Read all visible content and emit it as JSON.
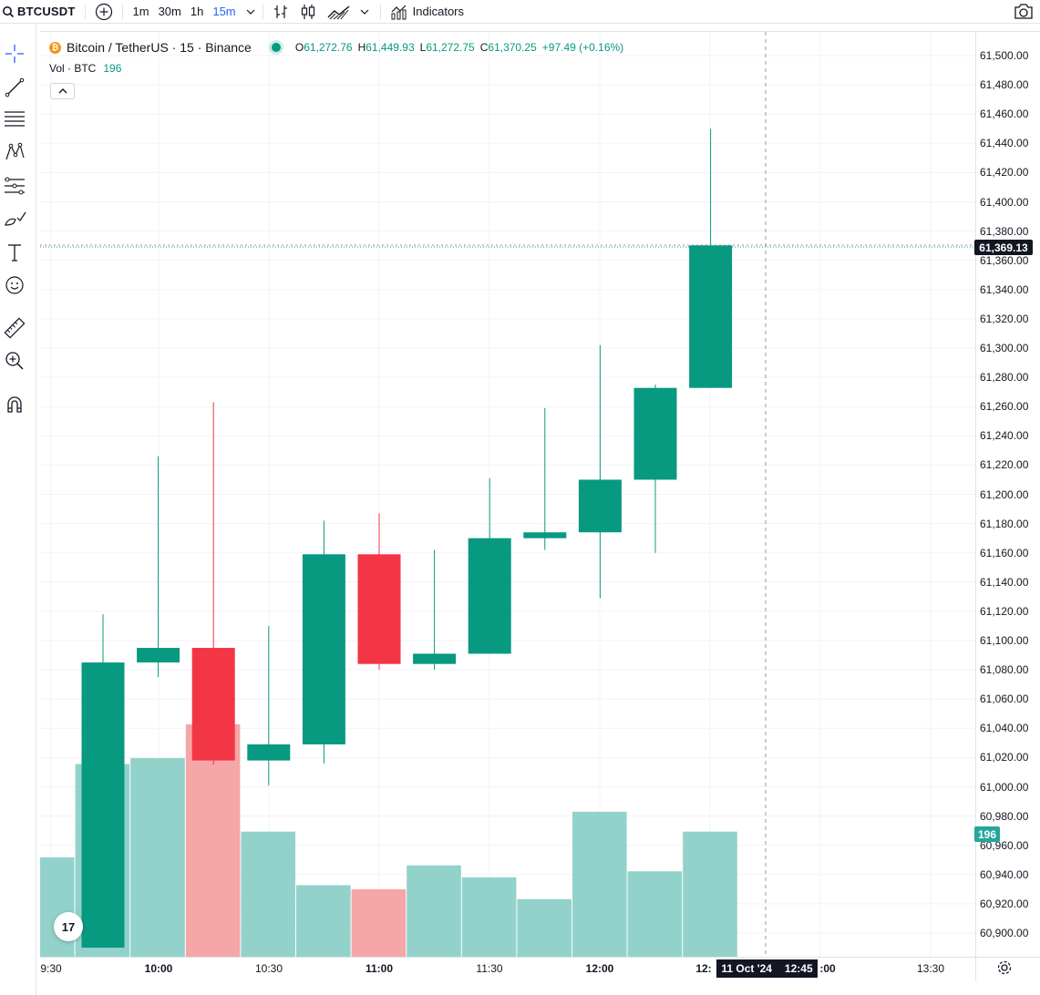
{
  "topbar": {
    "symbol": "BTCUSDT",
    "timeframes": [
      "1m",
      "30m",
      "1h",
      "15m"
    ],
    "active_timeframe": "15m",
    "indicators_label": "Indicators"
  },
  "legend": {
    "title": "Bitcoin / TetherUS · 15 · Binance",
    "open_key": "O",
    "open": "61,272.76",
    "high_key": "H",
    "high": "61,449.93",
    "low_key": "L",
    "low": "61,272.75",
    "close_key": "C",
    "close": "61,370.25",
    "change": "+97.49 (+0.16%)"
  },
  "volume_legend": {
    "label": "Vol · BTC",
    "value": "196"
  },
  "logo": "17",
  "price_axis": {
    "labels": [
      "61,500.00",
      "61,480.00",
      "61,460.00",
      "61,440.00",
      "61,420.00",
      "61,400.00",
      "61,380.00",
      "61,360.00",
      "61,340.00",
      "61,320.00",
      "61,300.00",
      "61,280.00",
      "61,260.00",
      "61,240.00",
      "61,220.00",
      "61,200.00",
      "61,180.00",
      "61,160.00",
      "61,140.00",
      "61,120.00",
      "61,100.00",
      "61,080.00",
      "61,060.00",
      "61,040.00",
      "61,020.00",
      "61,000.00",
      "60,980.00",
      "60,960.00",
      "60,940.00",
      "60,920.00",
      "60,900.00"
    ],
    "last_price": "61,369.13",
    "volume_tag": "196"
  },
  "time_axis": {
    "labels": [
      {
        "text": "9:30",
        "bold": false
      },
      {
        "text": "10:00",
        "bold": true
      },
      {
        "text": "10:30",
        "bold": false
      },
      {
        "text": "11:00",
        "bold": true
      },
      {
        "text": "11:30",
        "bold": false
      },
      {
        "text": "12:00",
        "bold": true
      },
      {
        "text": "12:",
        "bold": true
      },
      {
        "text": ":00",
        "bold": true
      },
      {
        "text": "13:30",
        "bold": false
      }
    ],
    "crosshair_date": "11 Oct '24",
    "crosshair_time": "12:45"
  },
  "colors": {
    "up": "#089981",
    "down": "#f23645",
    "vol_up": "#92d2cb",
    "vol_down": "#f5a6a6"
  },
  "chart_data": {
    "type": "candlestick",
    "symbol": "BTCUSDT",
    "interval": "15",
    "exchange": "Binance",
    "ylim": [
      60890,
      61510
    ],
    "candles": [
      {
        "time": "9:45",
        "open": 60890.0,
        "high": 61118.0,
        "low": 60890.0,
        "close": 61085.0
      },
      {
        "time": "10:00",
        "open": 61085.0,
        "high": 61226.0,
        "low": 61075.0,
        "close": 61095.0
      },
      {
        "time": "10:15",
        "open": 61095.0,
        "high": 61263.0,
        "low": 61015.0,
        "close": 61018.0
      },
      {
        "time": "10:30",
        "open": 61018.0,
        "high": 61110.0,
        "low": 61001.0,
        "close": 61029.0
      },
      {
        "time": "10:45",
        "open": 61029.0,
        "high": 61182.0,
        "low": 61016.0,
        "close": 61159.0
      },
      {
        "time": "11:00",
        "open": 61159.0,
        "high": 61187.0,
        "low": 61080.0,
        "close": 61084.0
      },
      {
        "time": "11:15",
        "open": 61084.0,
        "high": 61162.0,
        "low": 61080.0,
        "close": 61091.0
      },
      {
        "time": "11:30",
        "open": 61091.0,
        "high": 61211.0,
        "low": 61091.0,
        "close": 61170.0
      },
      {
        "time": "11:45",
        "open": 61170.0,
        "high": 61259.0,
        "low": 61162.0,
        "close": 61174.0
      },
      {
        "time": "12:00",
        "open": 61174.0,
        "high": 61302.0,
        "low": 61129.0,
        "close": 61210.0
      },
      {
        "time": "12:15",
        "open": 61210.0,
        "high": 61275.0,
        "low": 61160.0,
        "close": 61272.76
      },
      {
        "time": "12:30",
        "open": 61272.76,
        "high": 61449.93,
        "low": 61272.75,
        "close": 61370.25
      }
    ],
    "volume": [
      {
        "time": "9:30",
        "value": 0.5,
        "dir": "up"
      },
      {
        "time": "9:45",
        "value": 0.97,
        "dir": "up"
      },
      {
        "time": "10:00",
        "value": 1.0,
        "dir": "up"
      },
      {
        "time": "10:15",
        "value": 1.17,
        "dir": "down"
      },
      {
        "time": "10:30",
        "value": 0.63,
        "dir": "up"
      },
      {
        "time": "10:45",
        "value": 0.36,
        "dir": "up"
      },
      {
        "time": "11:00",
        "value": 0.34,
        "dir": "down"
      },
      {
        "time": "11:15",
        "value": 0.46,
        "dir": "up"
      },
      {
        "time": "11:30",
        "value": 0.4,
        "dir": "up"
      },
      {
        "time": "11:45",
        "value": 0.29,
        "dir": "up"
      },
      {
        "time": "12:00",
        "value": 0.73,
        "dir": "up"
      },
      {
        "time": "12:15",
        "value": 0.43,
        "dir": "up"
      },
      {
        "time": "12:30",
        "value": 0.63,
        "dir": "up"
      }
    ],
    "last_price": 61369.13,
    "grid": true
  }
}
